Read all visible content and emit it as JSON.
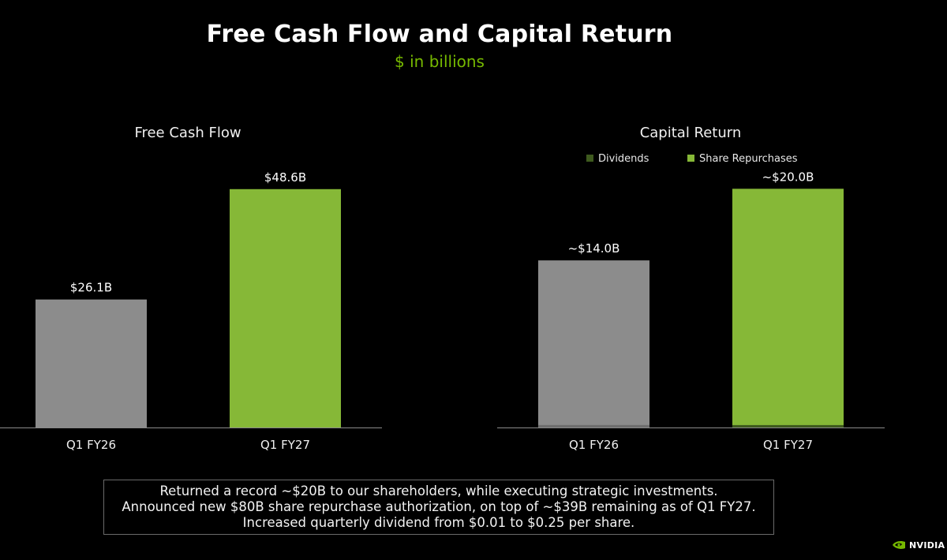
{
  "title": "Free Cash Flow and Capital Return",
  "subtitle": "$ in billions",
  "colors": {
    "gray": "#8c8c8c",
    "green": "#86b837",
    "dark_green": "#3e5a1e",
    "brand": "#76b900"
  },
  "chart_data": [
    {
      "type": "bar",
      "title": "Free Cash Flow",
      "categories": [
        "Q1 FY26",
        "Q1 FY27"
      ],
      "values": [
        26.1,
        48.6
      ],
      "labels": [
        "$26.1B",
        "$48.6B"
      ],
      "bar_colors": [
        "#8c8c8c",
        "#86b837"
      ],
      "ylim": [
        0,
        55
      ]
    },
    {
      "type": "bar",
      "stacked": true,
      "title": "Capital Return",
      "categories": [
        "Q1 FY26",
        "Q1 FY27"
      ],
      "legend_placement": "top",
      "series": [
        {
          "name": "Dividends",
          "values": [
            0.2,
            0.2
          ],
          "color": "#3e5a1e"
        },
        {
          "name": "Share Repurchases",
          "values": [
            13.8,
            19.8
          ],
          "color": "#86b837"
        }
      ],
      "totals": [
        14.0,
        20.0
      ],
      "labels": [
        "~$14.0B",
        "~$20.0B"
      ],
      "bar_colors": [
        "#8c8c8c",
        "#86b837"
      ],
      "ylim": [
        0,
        22.6
      ]
    }
  ],
  "callout": [
    "Returned a record ~$20B to our shareholders, while executing strategic investments.",
    "Announced new $80B share repurchase authorization, on top of ~$39B remaining as of Q1 FY27.",
    "Increased quarterly dividend from $0.01 to $0.25 per share."
  ],
  "logo": {
    "text": "NVIDIA",
    "icon": "nvidia-eye-icon"
  }
}
